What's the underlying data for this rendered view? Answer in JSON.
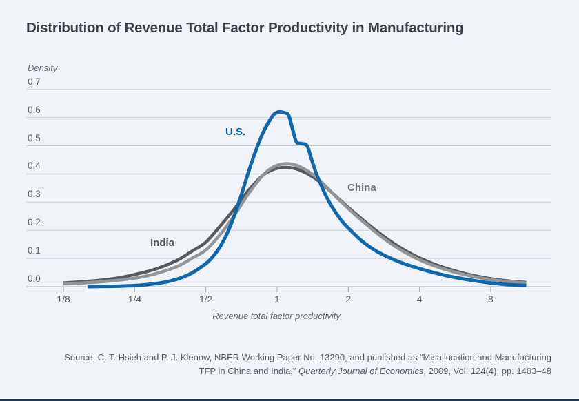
{
  "page": {
    "background_color": "#f0f4f8",
    "footer_bar_color": "#1d3c5f"
  },
  "title": "Distribution of Revenue Total Factor Productivity in Manufacturing",
  "source_note": {
    "line1": "Source: C. T. Hsieh and P. J. Klenow, NBER Working Paper No. 13290, and published as “Misallocation and Manufacturing",
    "line2_pre": "TFP in China and India,” ",
    "line2_italic": "Quarterly Journal of Economics",
    "line2_post": ", 2009, Vol. 124(4), pp. 1403–48"
  },
  "chart_data": {
    "type": "line",
    "title": "Distribution of Revenue Total Factor Productivity in Manufacturing",
    "ylabel": "Density",
    "xlabel": "Revenue total factor productivity",
    "x_scale": "log2",
    "grid": true,
    "grid_color": "#ccd1d7",
    "axis_color": "#a9afb6",
    "tick_color": "#9aa0a7",
    "ylim": [
      0.0,
      0.7
    ],
    "y_ticks": [
      "0.7",
      "0.6",
      "0.5",
      "0.4",
      "0.3",
      "0.2",
      "0.1",
      "0.0"
    ],
    "x_ticks": [
      {
        "label": "1/8",
        "log2": -3
      },
      {
        "label": "1/4",
        "log2": -2
      },
      {
        "label": "1/2",
        "log2": -1
      },
      {
        "label": "1",
        "log2": 0
      },
      {
        "label": "2",
        "log2": 1
      },
      {
        "label": "4",
        "log2": 2
      },
      {
        "label": "8",
        "log2": 3
      }
    ],
    "series": [
      {
        "name": "India",
        "color": "#56595d",
        "stroke_width": 4.5,
        "label": {
          "text": "India",
          "x": 218,
          "y": 344,
          "color": "#54585c"
        },
        "points": [
          [
            -3.0,
            0.013
          ],
          [
            -2.6,
            0.02
          ],
          [
            -2.3,
            0.028
          ],
          [
            -2.0,
            0.043
          ],
          [
            -1.7,
            0.063
          ],
          [
            -1.4,
            0.094
          ],
          [
            -1.2,
            0.125
          ],
          [
            -1.0,
            0.158
          ],
          [
            -0.8,
            0.215
          ],
          [
            -0.6,
            0.276
          ],
          [
            -0.4,
            0.342
          ],
          [
            -0.2,
            0.395
          ],
          [
            -0.05,
            0.416
          ],
          [
            0.1,
            0.423
          ],
          [
            0.25,
            0.419
          ],
          [
            0.4,
            0.404
          ],
          [
            0.55,
            0.381
          ],
          [
            0.7,
            0.35
          ],
          [
            0.85,
            0.315
          ],
          [
            1.0,
            0.281
          ],
          [
            1.2,
            0.238
          ],
          [
            1.4,
            0.197
          ],
          [
            1.6,
            0.16
          ],
          [
            1.8,
            0.128
          ],
          [
            2.0,
            0.102
          ],
          [
            2.25,
            0.076
          ],
          [
            2.5,
            0.056
          ],
          [
            2.75,
            0.04
          ],
          [
            3.0,
            0.028
          ],
          [
            3.25,
            0.02
          ],
          [
            3.5,
            0.015
          ]
        ]
      },
      {
        "name": "China",
        "color": "#939699",
        "stroke_width": 4.5,
        "label": {
          "text": "China",
          "x": 504,
          "y": 264,
          "color": "#717579"
        },
        "points": [
          [
            -3.0,
            0.01
          ],
          [
            -2.6,
            0.015
          ],
          [
            -2.3,
            0.021
          ],
          [
            -2.0,
            0.03
          ],
          [
            -1.7,
            0.046
          ],
          [
            -1.4,
            0.072
          ],
          [
            -1.2,
            0.1
          ],
          [
            -1.0,
            0.13
          ],
          [
            -0.8,
            0.185
          ],
          [
            -0.6,
            0.253
          ],
          [
            -0.4,
            0.33
          ],
          [
            -0.2,
            0.395
          ],
          [
            -0.05,
            0.425
          ],
          [
            0.1,
            0.436
          ],
          [
            0.25,
            0.432
          ],
          [
            0.4,
            0.415
          ],
          [
            0.55,
            0.388
          ],
          [
            0.7,
            0.352
          ],
          [
            0.85,
            0.313
          ],
          [
            1.0,
            0.277
          ],
          [
            1.2,
            0.232
          ],
          [
            1.4,
            0.19
          ],
          [
            1.6,
            0.152
          ],
          [
            1.8,
            0.121
          ],
          [
            2.0,
            0.095
          ],
          [
            2.25,
            0.07
          ],
          [
            2.5,
            0.051
          ],
          [
            2.75,
            0.036
          ],
          [
            3.0,
            0.025
          ],
          [
            3.25,
            0.018
          ],
          [
            3.5,
            0.013
          ]
        ]
      },
      {
        "name": "U.S.",
        "color": "#0f67ad",
        "stroke_width": 5,
        "label": {
          "text": "U.S.",
          "x": 327,
          "y": 183,
          "color": "#0e62a5"
        },
        "points": [
          [
            -2.66,
            0.0
          ],
          [
            -2.4,
            0.001
          ],
          [
            -2.2,
            0.002
          ],
          [
            -2.0,
            0.004
          ],
          [
            -1.8,
            0.008
          ],
          [
            -1.6,
            0.015
          ],
          [
            -1.4,
            0.027
          ],
          [
            -1.2,
            0.048
          ],
          [
            -1.0,
            0.082
          ],
          [
            -0.9,
            0.107
          ],
          [
            -0.8,
            0.142
          ],
          [
            -0.7,
            0.19
          ],
          [
            -0.6,
            0.253
          ],
          [
            -0.5,
            0.328
          ],
          [
            -0.4,
            0.408
          ],
          [
            -0.3,
            0.482
          ],
          [
            -0.2,
            0.545
          ],
          [
            -0.1,
            0.592
          ],
          [
            -0.04,
            0.612
          ],
          [
            0.03,
            0.62
          ],
          [
            0.1,
            0.617
          ],
          [
            0.16,
            0.609
          ],
          [
            0.21,
            0.566
          ],
          [
            0.27,
            0.514
          ],
          [
            0.33,
            0.508
          ],
          [
            0.42,
            0.5
          ],
          [
            0.48,
            0.455
          ],
          [
            0.55,
            0.402
          ],
          [
            0.65,
            0.342
          ],
          [
            0.75,
            0.292
          ],
          [
            0.9,
            0.236
          ],
          [
            1.0,
            0.208
          ],
          [
            1.2,
            0.16
          ],
          [
            1.4,
            0.125
          ],
          [
            1.6,
            0.1
          ],
          [
            1.8,
            0.08
          ],
          [
            2.0,
            0.064
          ],
          [
            2.2,
            0.05
          ],
          [
            2.4,
            0.038
          ],
          [
            2.6,
            0.028
          ],
          [
            2.8,
            0.02
          ],
          [
            3.0,
            0.013
          ],
          [
            3.2,
            0.008
          ],
          [
            3.5,
            0.004
          ]
        ]
      }
    ]
  }
}
